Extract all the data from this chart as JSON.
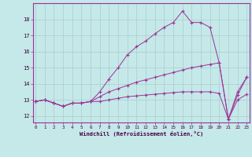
{
  "xlabel": "Windchill (Refroidissement éolien,°C)",
  "bg_color": "#c5e8e8",
  "line_color": "#993399",
  "grid_color": "#aacccc",
  "x_ticks": [
    0,
    1,
    2,
    3,
    4,
    5,
    6,
    7,
    8,
    9,
    10,
    11,
    12,
    13,
    14,
    15,
    16,
    17,
    18,
    19,
    20,
    21,
    22,
    23
  ],
  "y_ticks": [
    12,
    13,
    14,
    15,
    16,
    17,
    18
  ],
  "ylim": [
    11.6,
    19.0
  ],
  "xlim": [
    -0.3,
    23.3
  ],
  "series": [
    {
      "x": [
        0,
        1,
        2,
        3,
        4,
        5,
        6,
        7,
        8,
        9,
        10,
        11,
        12,
        13,
        14,
        15,
        16,
        17,
        18,
        19,
        20,
        21,
        22,
        23
      ],
      "y": [
        12.9,
        13.0,
        12.8,
        12.6,
        12.8,
        12.8,
        12.9,
        13.5,
        14.3,
        15.0,
        15.8,
        16.3,
        16.65,
        17.1,
        17.5,
        17.8,
        18.5,
        17.8,
        17.8,
        17.5,
        15.3,
        11.8,
        13.5,
        14.4
      ]
    },
    {
      "x": [
        0,
        1,
        2,
        3,
        4,
        5,
        6,
        7,
        8,
        9,
        10,
        11,
        12,
        13,
        14,
        15,
        16,
        17,
        18,
        19,
        20,
        21,
        22,
        23
      ],
      "y": [
        12.9,
        13.0,
        12.8,
        12.6,
        12.8,
        12.8,
        12.9,
        13.2,
        13.5,
        13.7,
        13.9,
        14.1,
        14.25,
        14.4,
        14.55,
        14.7,
        14.85,
        15.0,
        15.1,
        15.2,
        15.3,
        11.8,
        13.3,
        14.4
      ]
    },
    {
      "x": [
        0,
        1,
        2,
        3,
        4,
        5,
        6,
        7,
        8,
        9,
        10,
        11,
        12,
        13,
        14,
        15,
        16,
        17,
        18,
        19,
        20,
        21,
        22,
        23
      ],
      "y": [
        12.9,
        13.0,
        12.8,
        12.6,
        12.8,
        12.8,
        12.9,
        12.9,
        13.0,
        13.1,
        13.2,
        13.25,
        13.3,
        13.35,
        13.4,
        13.45,
        13.5,
        13.5,
        13.5,
        13.5,
        13.4,
        11.8,
        13.0,
        13.35
      ]
    }
  ]
}
